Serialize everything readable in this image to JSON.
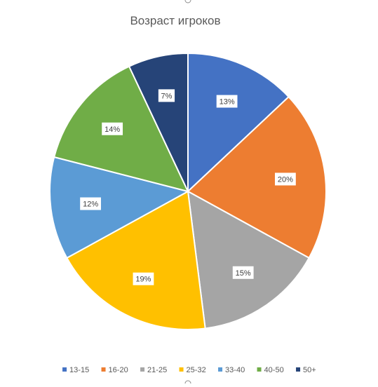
{
  "chart_data": {
    "type": "pie",
    "title": "Возраст игроков",
    "categories": [
      "13-15",
      "16-20",
      "21-25",
      "25-32",
      "33-40",
      "40-50",
      "50+"
    ],
    "values": [
      13,
      20,
      15,
      19,
      12,
      14,
      7
    ],
    "value_labels": [
      "13%",
      "20%",
      "15%",
      "19%",
      "12%",
      "14%",
      "7%"
    ],
    "unit": "%",
    "start_angle_deg": 0,
    "direction": "clockwise",
    "legend_position": "bottom",
    "colors": [
      "#4472C4",
      "#ED7D31",
      "#A5A5A5",
      "#FFC000",
      "#5B9BD5",
      "#70AD47",
      "#264478"
    ]
  }
}
